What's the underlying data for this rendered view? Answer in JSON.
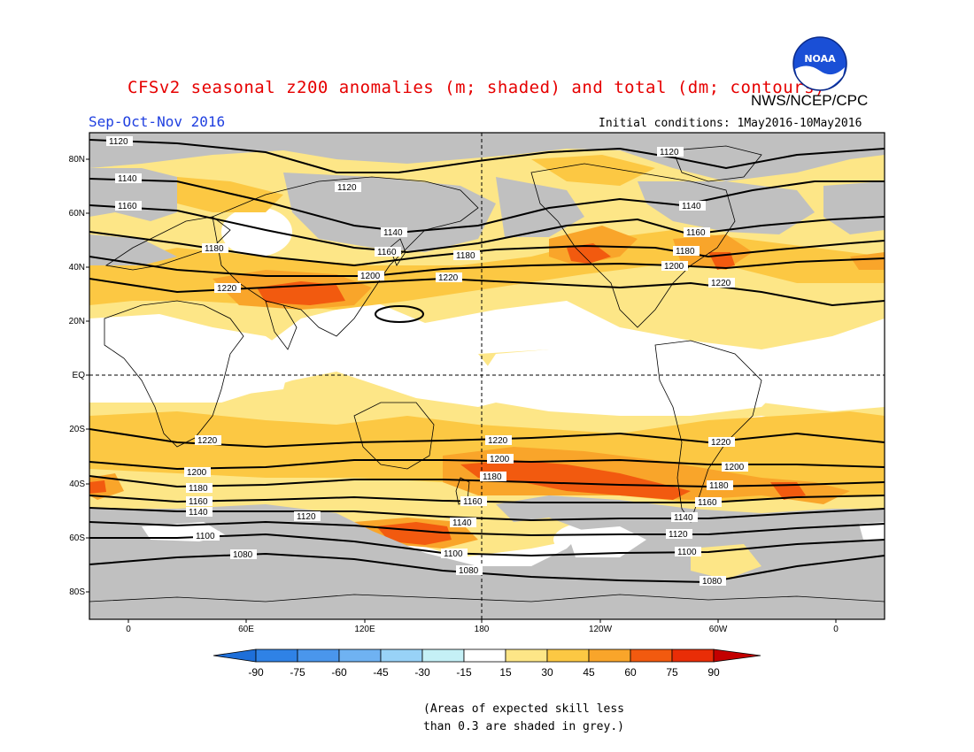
{
  "title": "CFSv2 seasonal z200 anomalies (m; shaded) and total (dm; contours)",
  "agency": "NWS/NCEP/CPC",
  "logo_text": "NOAA",
  "season": "Sep-Oct-Nov 2016",
  "initial_conditions": "Initial conditions: 1May2016-10May2016",
  "lat_labels": [
    "80N",
    "60N",
    "40N",
    "20N",
    "EQ",
    "20S",
    "40S",
    "60S",
    "80S"
  ],
  "lon_labels": [
    "0",
    "60E",
    "120E",
    "180",
    "120W",
    "60W",
    "0"
  ],
  "colorbar": {
    "labels": [
      "-90",
      "-75",
      "-60",
      "-45",
      "-30",
      "-15",
      "15",
      "30",
      "45",
      "60",
      "75",
      "90"
    ],
    "colors": [
      "#1e6fd9",
      "#2f82e6",
      "#4a96ec",
      "#6fb2f2",
      "#98d2f7",
      "#c5f0f6",
      "#ffffff",
      "#fde687",
      "#fcc843",
      "#f9a52a",
      "#f25a0f",
      "#e92d07",
      "#c30000"
    ]
  },
  "contour_labels": [
    "1120",
    "1140",
    "1160",
    "1180",
    "1200",
    "1220",
    "1100",
    "1080"
  ],
  "note_lines": [
    "(Areas of expected skill less",
    "than 0.3 are shaded in grey.)"
  ],
  "legend_colors": {
    "grey_low_skill": "#c0c0c0",
    "pos15_30": "#fde687",
    "pos30_45": "#fcc843",
    "pos45_60": "#f9a52a",
    "pos60_75": "#f25a0f",
    "pos75_90": "#e92d07"
  }
}
